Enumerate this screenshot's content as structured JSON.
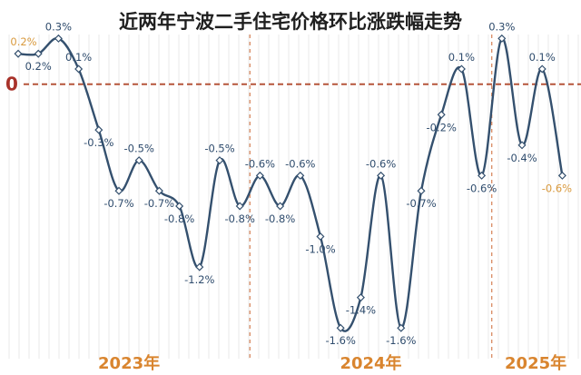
{
  "chart_data": {
    "type": "line",
    "title": "近两年宁波二手住宅价格环比涨跌幅走势",
    "zero_label": "0",
    "values": [
      0.2,
      0.2,
      0.3,
      0.1,
      -0.3,
      -0.7,
      -0.5,
      -0.7,
      -0.8,
      -1.2,
      -0.5,
      -0.8,
      -0.6,
      -0.8,
      -0.6,
      -1.0,
      -1.6,
      -1.4,
      -0.6,
      -1.6,
      -0.7,
      -0.2,
      0.1,
      -0.6,
      0.3,
      -0.4,
      0.1,
      -0.6
    ],
    "labels": [
      "0.2%",
      "0.2%",
      "0.3%",
      "0.1%",
      "-0.3%",
      "-0.7%",
      "-0.5%",
      "-0.7%",
      "-0.8%",
      "-1.2%",
      "-0.5%",
      "-0.8%",
      "-0.6%",
      "-0.8%",
      "-0.6%",
      "-1.0%",
      "-1.6%",
      "-1.4%",
      "-0.6%",
      "-1.6%",
      "-0.7%",
      "-0.2%",
      "0.1%",
      "-0.6%",
      "0.3%",
      "-0.4%",
      "0.1%",
      "-0.6%"
    ],
    "highlight_indices": [
      0,
      27
    ],
    "year_labels": [
      {
        "text": "2023年",
        "start_index": 0
      },
      {
        "text": "2024年",
        "start_index": 12
      },
      {
        "text": "2025年",
        "start_index": 24
      }
    ],
    "year_dividers_after_index": [
      11,
      23
    ],
    "ylim": [
      -1.7,
      0.35
    ],
    "grid": true,
    "line_color": "#34506e",
    "zero_line_color": "#b5553a",
    "highlight_label_color": "#d99a3e",
    "year_label_color": "#d9852f"
  }
}
